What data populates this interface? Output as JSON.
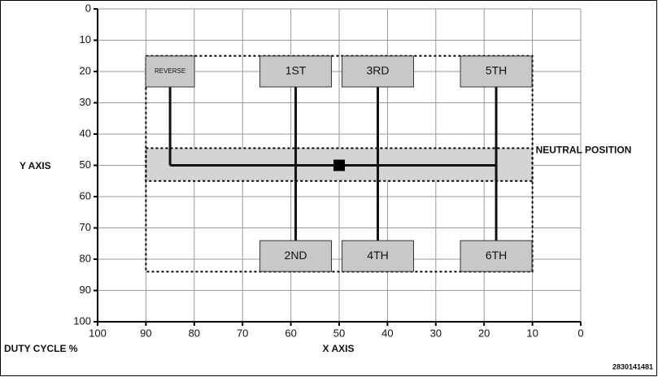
{
  "chart_data": {
    "type": "shift-pattern",
    "y_label": "Y AXIS",
    "x_label": "X AXIS",
    "x_unit_label": "DUTY CYCLE %",
    "figure_id": "2830141481",
    "xlim": [
      100,
      0
    ],
    "ylim": [
      0,
      100
    ],
    "xticks": [
      100,
      90,
      80,
      70,
      60,
      50,
      40,
      30,
      20,
      10,
      0
    ],
    "yticks": [
      0,
      10,
      20,
      30,
      40,
      50,
      60,
      70,
      80,
      90,
      100
    ],
    "grid": true,
    "shift_region": {
      "x": [
        90,
        10
      ],
      "y": [
        15,
        84
      ]
    },
    "neutral": {
      "label": "NEUTRAL POSITION",
      "y": [
        44.5,
        55
      ],
      "line_y": 50
    },
    "gears": [
      {
        "label": "REVERSE",
        "x": 85,
        "y": 20
      },
      {
        "label": "1ST",
        "x": 59,
        "y": 20
      },
      {
        "label": "2ND",
        "x": 59,
        "y": 79
      },
      {
        "label": "3RD",
        "x": 42,
        "y": 20
      },
      {
        "label": "4TH",
        "x": 42,
        "y": 79
      },
      {
        "label": "5TH",
        "x": 17.5,
        "y": 20
      },
      {
        "label": "6TH",
        "x": 17.5,
        "y": 79
      }
    ],
    "marker": {
      "x": 50,
      "y": 50
    }
  }
}
